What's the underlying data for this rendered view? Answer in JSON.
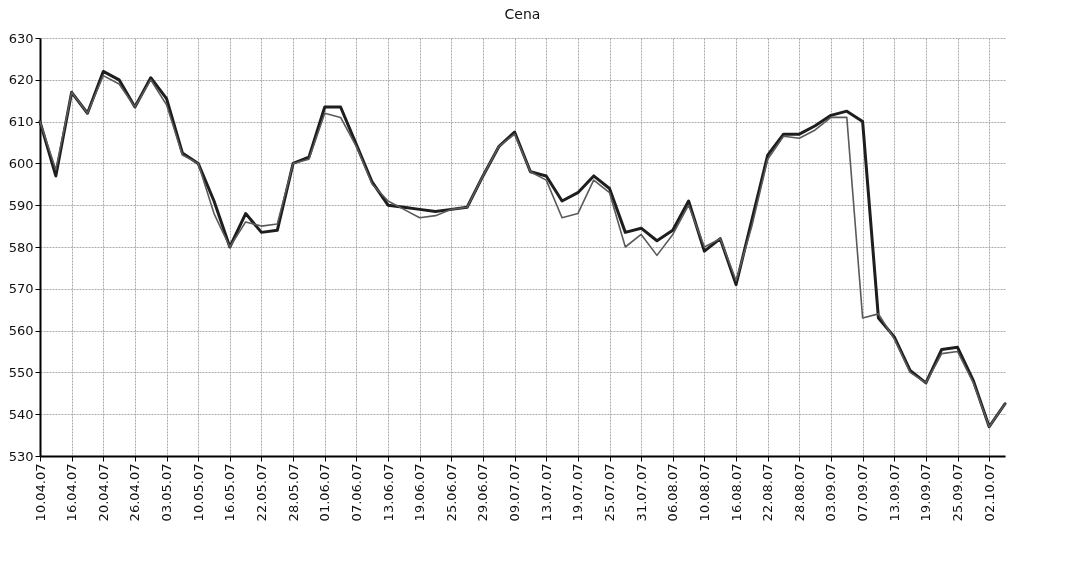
{
  "chart_data": {
    "type": "line",
    "title": "Cena",
    "categories": [
      "10.04.07",
      null,
      "16.04.07",
      null,
      "20.04.07",
      null,
      "26.04.07",
      null,
      "03.05.07",
      null,
      "10.05.07",
      null,
      "16.05.07",
      null,
      "22.05.07",
      null,
      "28.05.07",
      null,
      "01.06.07",
      null,
      "07.06.07",
      null,
      "13.06.07",
      null,
      "19.06.07",
      null,
      "25.06.07",
      null,
      "29.06.07",
      null,
      "09.07.07",
      null,
      "13.07.07",
      null,
      "19.07.07",
      null,
      "25.07.07",
      null,
      "31.07.07",
      null,
      "06.08.07",
      null,
      "10.08.07",
      null,
      "16.08.07",
      null,
      "22.08.07",
      null,
      "28.08.07",
      null,
      "03.09.07",
      null,
      "07.09.07",
      null,
      "13.09.07",
      null,
      "19.09.07",
      null,
      "25.09.07",
      null,
      "02.10.07",
      null
    ],
    "series": [
      {
        "color": "#1e1e1e",
        "values": [
          610,
          597,
          617,
          612,
          622,
          620,
          613.5,
          620.5,
          615.5,
          602.5,
          600,
          591,
          580,
          588,
          583.5,
          584,
          600,
          601.5,
          613.5,
          613.5,
          604.5,
          595.5,
          590,
          589.5,
          589,
          588.5,
          589,
          589.5,
          597,
          604,
          607.5,
          598,
          597,
          591,
          593,
          597,
          594,
          583.5,
          584.5,
          581.5,
          584,
          591,
          579,
          582,
          571,
          586.5,
          602,
          607,
          607,
          609,
          611.5,
          612.5,
          610,
          563,
          558.5,
          550.5,
          547.5,
          555.5,
          556,
          548,
          537,
          542.5
        ]
      },
      {
        "color": "#5a5a5a",
        "values": [
          610,
          598.5,
          617,
          612,
          621,
          619,
          613.5,
          620,
          614,
          602,
          600,
          588,
          580,
          586,
          585,
          585.5,
          600,
          601,
          612,
          611,
          604,
          595,
          591,
          589,
          587,
          587.5,
          589,
          589.5,
          597,
          604,
          607,
          598,
          596,
          587,
          588,
          596,
          593,
          580,
          583,
          578,
          583,
          590,
          580,
          582,
          572,
          585,
          601,
          606.5,
          606,
          608,
          611,
          611,
          563,
          564,
          558,
          550,
          547.5,
          554.5,
          555,
          547.5,
          537,
          542.5
        ]
      }
    ],
    "ylim": [
      530,
      630
    ],
    "yticks": [
      530,
      540,
      550,
      560,
      570,
      580,
      590,
      600,
      610,
      620,
      630
    ],
    "grid": true
  }
}
